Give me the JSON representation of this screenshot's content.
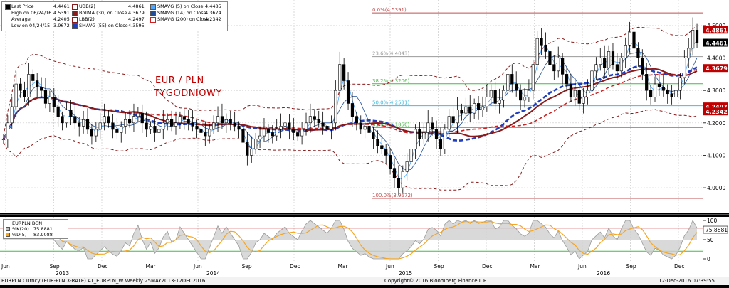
{
  "chart_data": {
    "type": "line",
    "title": "",
    "annotation": [
      "EUR / PLN",
      "TYGODNIOWY"
    ],
    "ylim": [
      3.93,
      4.57
    ],
    "price_axis_ticks": [
      "4.5000",
      "4.4000",
      "4.3000",
      "4.2000",
      "4.1000",
      "4.0000"
    ],
    "price_axis_tick_values": [
      4.5,
      4.4,
      4.3,
      4.2,
      4.1,
      4.0
    ],
    "x_axis_month_labels": [
      "Jun",
      "Sep",
      "Dec",
      "Mar",
      "Jun",
      "Sep",
      "Dec",
      "Mar",
      "Jun",
      "Sep",
      "Dec",
      "Mar",
      "Jun",
      "Sep",
      "Dec"
    ],
    "x_axis_year_labels": [
      "2013",
      "2014",
      "2015",
      "2016"
    ],
    "price_tags": [
      {
        "label": "4.4861",
        "value": 4.4861,
        "color": "#c00000"
      },
      {
        "label": "4.4461",
        "value": 4.4461,
        "color": "#000000"
      },
      {
        "label": "4.3679",
        "value": 4.3679,
        "color": "#c00000"
      },
      {
        "label": "4.2497",
        "value": 4.2497,
        "color": "#c00000"
      },
      {
        "label": "4.2342",
        "value": 4.2342,
        "color": "#c00000"
      }
    ],
    "fibonacci": [
      {
        "label": "0.0%(4.5391)",
        "value": 4.5391,
        "color": "#c05050"
      },
      {
        "label": "23.6%(4.4043)",
        "value": 4.4043,
        "color": "#999999"
      },
      {
        "label": "38.2%(4.3206)",
        "value": 4.3206,
        "color": "#44bb44"
      },
      {
        "label": "50.0%(4.2531)",
        "value": 4.2531,
        "color": "#44bbdd"
      },
      {
        "label": "61.8%(4.1856)",
        "value": 4.1856,
        "color": "#44bb44"
      },
      {
        "label": "100.0%(3.9672)",
        "value": 3.9672,
        "color": "#c05050"
      }
    ],
    "weekly_close": [
      4.15,
      4.2,
      4.25,
      4.32,
      4.3,
      4.28,
      4.35,
      4.33,
      4.31,
      4.3,
      4.26,
      4.28,
      4.25,
      4.22,
      4.2,
      4.24,
      4.22,
      4.2,
      4.19,
      4.21,
      4.18,
      4.16,
      4.18,
      4.2,
      4.22,
      4.2,
      4.18,
      4.17,
      4.19,
      4.21,
      4.2,
      4.22,
      4.23,
      4.2,
      4.18,
      4.19,
      4.17,
      4.18,
      4.2,
      4.21,
      4.19,
      4.2,
      4.22,
      4.21,
      4.2,
      4.19,
      4.18,
      4.17,
      4.16,
      4.18,
      4.2,
      4.22,
      4.2,
      4.21,
      4.2,
      4.19,
      4.18,
      4.14,
      4.1,
      4.12,
      4.15,
      4.16,
      4.18,
      4.17,
      4.16,
      4.18,
      4.19,
      4.2,
      4.18,
      4.17,
      4.16,
      4.18,
      4.2,
      4.22,
      4.21,
      4.2,
      4.19,
      4.18,
      4.2,
      4.3,
      4.38,
      4.33,
      4.26,
      4.22,
      4.2,
      4.18,
      4.19,
      4.17,
      4.15,
      4.13,
      4.12,
      4.1,
      4.06,
      4.03,
      4.0,
      4.05,
      4.08,
      4.12,
      4.18,
      4.15,
      4.17,
      4.2,
      4.18,
      4.15,
      4.12,
      4.18,
      4.22,
      4.2,
      4.24,
      4.23,
      4.25,
      4.23,
      4.26,
      4.24,
      4.25,
      4.28,
      4.3,
      4.26,
      4.27,
      4.3,
      4.35,
      4.32,
      4.3,
      4.27,
      4.28,
      4.3,
      4.38,
      4.46,
      4.44,
      4.42,
      4.38,
      4.36,
      4.4,
      4.35,
      4.32,
      4.28,
      4.3,
      4.26,
      4.28,
      4.3,
      4.36,
      4.38,
      4.4,
      4.37,
      4.42,
      4.38,
      4.36,
      4.4,
      4.44,
      4.48,
      4.43,
      4.4,
      4.35,
      4.3,
      4.28,
      4.32,
      4.31,
      4.3,
      4.29,
      4.28,
      4.3,
      4.34,
      4.4,
      4.43,
      4.4861,
      4.4461
    ],
    "series": [
      {
        "name": "SMAVG (5) on Close",
        "legend_value": "4.4485",
        "color": "#4da6ff"
      },
      {
        "name": "SMAVG (14) on Close",
        "legend_value": "4.3674",
        "color": "#1f4e9c"
      },
      {
        "name": "SMAVG (55) on Close",
        "legend_value": "4.3595",
        "color": "#1f3fbf"
      },
      {
        "name": "SMAVG (200) on Close",
        "legend_value": "4.2342",
        "color": "#cc2222"
      },
      {
        "name": "BollMA (30) on Close",
        "legend_value": "4.3679",
        "color": "#8b1a1a"
      },
      {
        "name": "UBB(2)",
        "legend_value": "4.4861",
        "color": "#8b1a1a"
      },
      {
        "name": "LBB(2)",
        "legend_value": "4.2497",
        "color": "#8b1a1a"
      }
    ],
    "legend": {
      "last_price_label": "Last Price",
      "last_price": "4.4461",
      "high_label": "High on 06/24/16",
      "high": "4.5391",
      "average_label": "Average",
      "average": "4.2405",
      "low_label": "Low on 04/24/15",
      "low": "3.9672"
    },
    "lower_panel": {
      "name": "EURPLN BGN",
      "k_label": "%K(20)",
      "k_value": "75.8881",
      "d_label": "%D(5)",
      "d_value": "83.9088",
      "ticks": [
        "100",
        "50",
        "0"
      ],
      "tick_values": [
        100,
        50,
        0
      ],
      "tag_value": "75.8881",
      "ref_lines": [
        80,
        20
      ]
    }
  },
  "footer": {
    "left": "EURPLN Curncy (EUR-PLN X-RATE) AT_EURPLN_W  Weekly 25MAY2013-12DEC2016",
    "center": "Copyright© 2016 Bloomberg Finance L.P.",
    "right": "12-Dec-2016 07:39:55"
  },
  "colors": {
    "background": "#000000",
    "panel": "#ffffff",
    "grid": "#cccccc",
    "candle": "#000000"
  }
}
